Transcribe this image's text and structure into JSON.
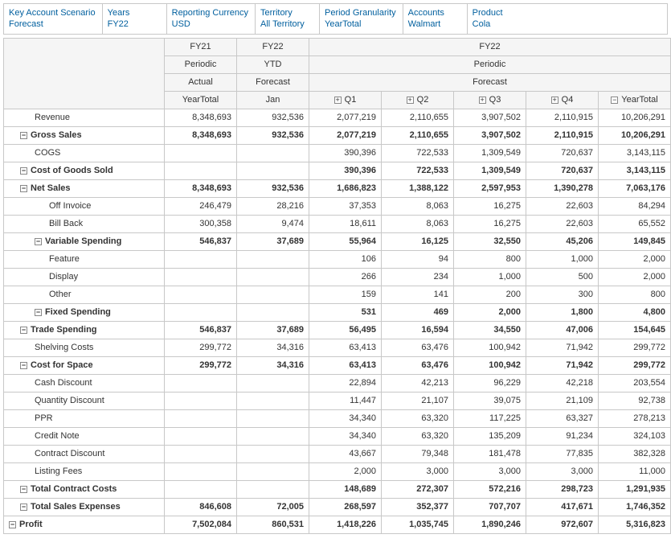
{
  "filters": [
    {
      "label": "Key Account Scenario",
      "value": "Forecast"
    },
    {
      "label": "Years",
      "value": "FY22"
    },
    {
      "label": "Reporting Currency",
      "value": "USD"
    },
    {
      "label": "Territory",
      "value": "All Territory"
    },
    {
      "label": "Period Granularity",
      "value": "YearTotal"
    },
    {
      "label": "Accounts",
      "value": "Walmart"
    },
    {
      "label": "Product",
      "value": "Cola"
    }
  ],
  "col_headers": {
    "row1": {
      "c0": "FY21",
      "c1": "FY22",
      "c2": "FY22"
    },
    "row2": {
      "c0": "Periodic",
      "c1": "YTD",
      "c2": "Periodic"
    },
    "row3": {
      "c0": "Actual",
      "c1": "Forecast",
      "c2": "Forecast"
    },
    "row4": {
      "c0": "YearTotal",
      "c1": "Jan",
      "q1": "Q1",
      "q2": "Q2",
      "q3": "Q3",
      "q4": "Q4",
      "yt": "YearTotal"
    },
    "expand_plus": "+",
    "expand_minus": "−"
  },
  "rows": [
    {
      "label": "Revenue",
      "indent": 2,
      "bold": false,
      "expand": "",
      "v": [
        "8,348,693",
        "932,536",
        "2,077,219",
        "2,110,655",
        "3,907,502",
        "2,110,915",
        "10,206,291"
      ]
    },
    {
      "label": "Gross Sales",
      "indent": 1,
      "bold": true,
      "expand": "-",
      "v": [
        "8,348,693",
        "932,536",
        "2,077,219",
        "2,110,655",
        "3,907,502",
        "2,110,915",
        "10,206,291"
      ]
    },
    {
      "label": "COGS",
      "indent": 2,
      "bold": false,
      "expand": "",
      "v": [
        "",
        "",
        "390,396",
        "722,533",
        "1,309,549",
        "720,637",
        "3,143,115"
      ]
    },
    {
      "label": "Cost of Goods Sold",
      "indent": 1,
      "bold": true,
      "expand": "-",
      "v": [
        "",
        "",
        "390,396",
        "722,533",
        "1,309,549",
        "720,637",
        "3,143,115"
      ]
    },
    {
      "label": "Net Sales",
      "indent": 1,
      "bold": true,
      "expand": "-",
      "v": [
        "8,348,693",
        "932,536",
        "1,686,823",
        "1,388,122",
        "2,597,953",
        "1,390,278",
        "7,063,176"
      ]
    },
    {
      "label": "Off Invoice",
      "indent": 3,
      "bold": false,
      "expand": "",
      "v": [
        "246,479",
        "28,216",
        "37,353",
        "8,063",
        "16,275",
        "22,603",
        "84,294"
      ]
    },
    {
      "label": "Bill Back",
      "indent": 3,
      "bold": false,
      "expand": "",
      "v": [
        "300,358",
        "9,474",
        "18,611",
        "8,063",
        "16,275",
        "22,603",
        "65,552"
      ]
    },
    {
      "label": "Variable Spending",
      "indent": 2,
      "bold": true,
      "expand": "-",
      "v": [
        "546,837",
        "37,689",
        "55,964",
        "16,125",
        "32,550",
        "45,206",
        "149,845"
      ]
    },
    {
      "label": "Feature",
      "indent": 3,
      "bold": false,
      "expand": "",
      "v": [
        "",
        "",
        "106",
        "94",
        "800",
        "1,000",
        "2,000"
      ]
    },
    {
      "label": "Display",
      "indent": 3,
      "bold": false,
      "expand": "",
      "v": [
        "",
        "",
        "266",
        "234",
        "1,000",
        "500",
        "2,000"
      ]
    },
    {
      "label": "Other",
      "indent": 3,
      "bold": false,
      "expand": "",
      "v": [
        "",
        "",
        "159",
        "141",
        "200",
        "300",
        "800"
      ]
    },
    {
      "label": "Fixed Spending",
      "indent": 2,
      "bold": true,
      "expand": "-",
      "v": [
        "",
        "",
        "531",
        "469",
        "2,000",
        "1,800",
        "4,800"
      ]
    },
    {
      "label": "Trade Spending",
      "indent": 1,
      "bold": true,
      "expand": "-",
      "v": [
        "546,837",
        "37,689",
        "56,495",
        "16,594",
        "34,550",
        "47,006",
        "154,645"
      ]
    },
    {
      "label": "Shelving Costs",
      "indent": 2,
      "bold": false,
      "expand": "",
      "v": [
        "299,772",
        "34,316",
        "63,413",
        "63,476",
        "100,942",
        "71,942",
        "299,772"
      ]
    },
    {
      "label": "Cost for Space",
      "indent": 1,
      "bold": true,
      "expand": "-",
      "v": [
        "299,772",
        "34,316",
        "63,413",
        "63,476",
        "100,942",
        "71,942",
        "299,772"
      ]
    },
    {
      "label": "Cash Discount",
      "indent": 2,
      "bold": false,
      "expand": "",
      "v": [
        "",
        "",
        "22,894",
        "42,213",
        "96,229",
        "42,218",
        "203,554"
      ]
    },
    {
      "label": "Quantity Discount",
      "indent": 2,
      "bold": false,
      "expand": "",
      "v": [
        "",
        "",
        "11,447",
        "21,107",
        "39,075",
        "21,109",
        "92,738"
      ]
    },
    {
      "label": "PPR",
      "indent": 2,
      "bold": false,
      "expand": "",
      "v": [
        "",
        "",
        "34,340",
        "63,320",
        "117,225",
        "63,327",
        "278,213"
      ]
    },
    {
      "label": "Credit Note",
      "indent": 2,
      "bold": false,
      "expand": "",
      "v": [
        "",
        "",
        "34,340",
        "63,320",
        "135,209",
        "91,234",
        "324,103"
      ]
    },
    {
      "label": "Contract Discount",
      "indent": 2,
      "bold": false,
      "expand": "",
      "v": [
        "",
        "",
        "43,667",
        "79,348",
        "181,478",
        "77,835",
        "382,328"
      ]
    },
    {
      "label": "Listing Fees",
      "indent": 2,
      "bold": false,
      "expand": "",
      "v": [
        "",
        "",
        "2,000",
        "3,000",
        "3,000",
        "3,000",
        "11,000"
      ]
    },
    {
      "label": "Total Contract Costs",
      "indent": 1,
      "bold": true,
      "expand": "-",
      "v": [
        "",
        "",
        "148,689",
        "272,307",
        "572,216",
        "298,723",
        "1,291,935"
      ]
    },
    {
      "label": "Total Sales Expenses",
      "indent": 1,
      "bold": true,
      "expand": "-",
      "v": [
        "846,608",
        "72,005",
        "268,597",
        "352,377",
        "707,707",
        "417,671",
        "1,746,352"
      ]
    },
    {
      "label": "Profit",
      "indent": 0,
      "bold": true,
      "expand": "-",
      "v": [
        "7,502,084",
        "860,531",
        "1,418,226",
        "1,035,745",
        "1,890,246",
        "972,607",
        "5,316,823"
      ]
    }
  ]
}
